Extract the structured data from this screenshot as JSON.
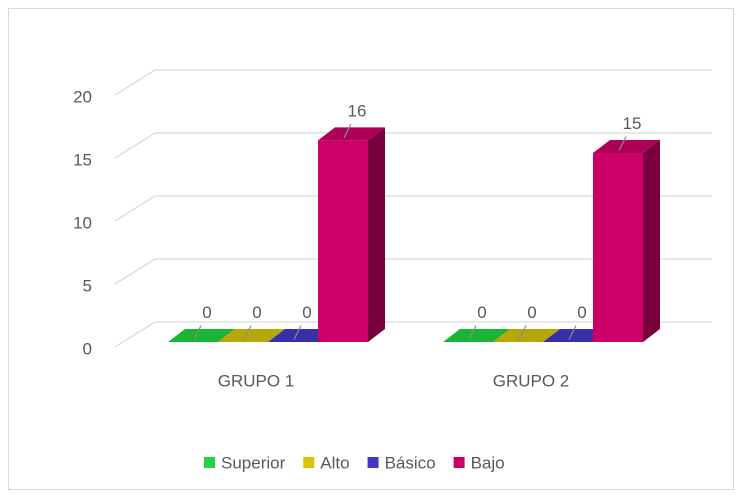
{
  "chart_data": {
    "type": "bar3d",
    "categories": [
      "GRUPO 1",
      "GRUPO 2"
    ],
    "series": [
      {
        "name": "Superior",
        "color": "#1fd43f",
        "values": [
          0,
          0
        ]
      },
      {
        "name": "Alto",
        "color": "#d8c40a",
        "values": [
          0,
          0
        ]
      },
      {
        "name": "Básico",
        "color": "#4338c4",
        "values": [
          0,
          0
        ]
      },
      {
        "name": "Bajo",
        "color": "#cc0066",
        "values": [
          16,
          15
        ]
      }
    ],
    "ylim": [
      0,
      20
    ],
    "yticks": [
      0,
      5,
      10,
      15,
      20
    ],
    "grid": true,
    "legend": "bottom"
  }
}
